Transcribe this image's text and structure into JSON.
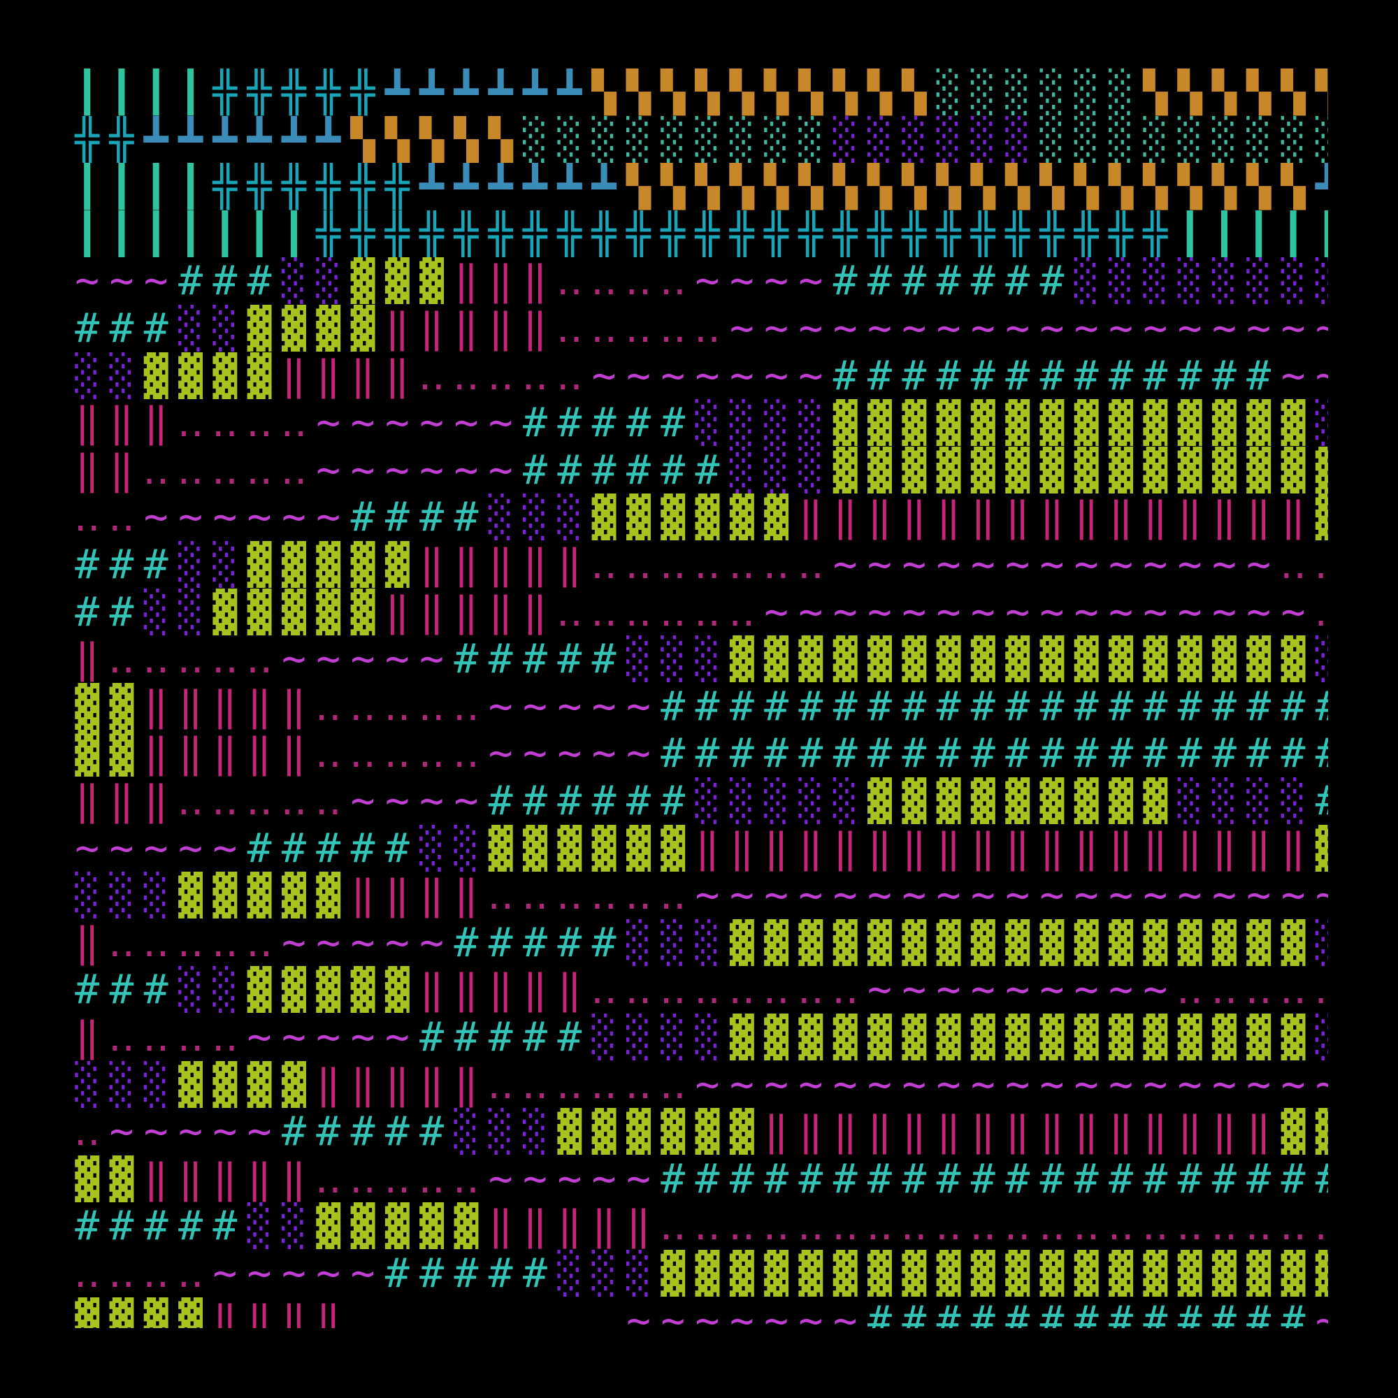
{
  "palette": {
    "background": "#000000",
    "vbar": "#2ec4a0",
    "cross": "#1aa6b8",
    "floor": "#3a8db8",
    "gold": "#c8882a",
    "stipple-teal": "#3fb89f",
    "stipple-violet": "#7a23d6",
    "wave": "#c23fd4",
    "hash": "#33c4b8",
    "lime": "#a7c41e",
    "pipe": "#c8247a",
    "dots": "#b0287a"
  },
  "glyphs": {
    "vbar": "┃",
    "cross": "╬",
    "floor": "┻",
    "gold": "▚",
    "stipple-teal": "░",
    "stipple-violet": "░",
    "wave": "~",
    "hash": "#",
    "lime": "▓",
    "pipe": "‖",
    "dots": "‥",
    "blank": " "
  },
  "legend": [
    "vbar",
    "cross",
    "floor",
    "gold",
    "stipple-teal",
    "stipple-violet",
    "wave",
    "hash",
    "lime",
    "pipe",
    "dots"
  ],
  "rows": [
    "VVVVCCCCCFFFFFFGGGGGGGGGGTTTTTTGGGGGGGGGG",
    "CCFFFFFFGGGGGTTTTTTTTTPPPPPPTTTTTTTTTT",
    "VVVVCCCCCCFFFFFFGGGGGGGGGGGGGGGGGGGGFFF",
    "VVVVVVVCCCCCCCCCCCCCCCCCCCCCCCCCVVVVVVVPP",
    "WWWHHHPPLLLIIIDDDDWWWWHHHHHHHPPPPPPPP",
    "HHHPPLLLLIIIIIDDDDDWWWWWWWWWWWWWWWWWWWWWWWW",
    "PPLLLLIIIIDDDDDWWWWWWWHHHHHHHHHHHHHWW",
    "IIIDDDDWWWWWWHHHHHPPPPLLLLLLLLLLLLLLPP",
    "IIDDDDDWWWWWWHHHHHHPPPLLLLLLLLLLLLLLLL",
    "DDWWWWWWHHHHPPPLLLLLLIIIIIIIIIIIIIIILL",
    "HHHPPLLLLLIIIIIDDDDDDDWWWWWWWWWWWWWDDD",
    "HHPPLLLLLIIIIIDDDDDDWWWWWWWWWWWWWWWWDD",
    "IDDDDDWWWWWHHHHHPPPLLLLLLLLLLLLLLLLLP",
    "LLIIIIIDDDDDWWWWWHHHHHHHHHHHHHHHHHHHH",
    "LLIIIIIDDDDDWWWWWHHHHHHHHHHHHHHHHHHHH",
    "IIIDDDDDWWWWHHHHHHPPPPPLLLLLLLLLPPPPH",
    "WWWWWHHHHHPPLLLLLLIIIIIIIIIIIIIIIIIIL",
    "PPPLLLLLIIIIDDDDDDWWWWWWWWWWWWWWWWWWWD",
    "IDDDDDWWWWWHHHHHPPPLLLLLLLLLLLLLLLLLPP",
    "HHHPPLLLLLIIIIIDDDDDDDDWWWWWWWWWDDDDD",
    "IDDDDWWWWWHHHHHPPPPLLLLLLLLLLLLLLLLLP",
    "PPPLLLLIIIIIDDDDDDWWWWWWWWWWWWWWWWWWWD",
    "DWWWWWHHHHHPPPLLLLLLIIIIIIIIIIIIIIILLL",
    "LLIIIIIDDDDDWWWWWHHHHHHHHHHHHHHHHHHHH",
    "HHHHHPPLLLLLIIIIIDDDDDDDDDDDDDDDDDDDDD",
    "DDDDWWWWWHHHHHPPPLLLLLLLLLLLLLLLLLLLL",
    "LLLLIIIIBBBBBBBBWWWWWWWHHHHHHHHHHHHHWWW"
  ]
}
